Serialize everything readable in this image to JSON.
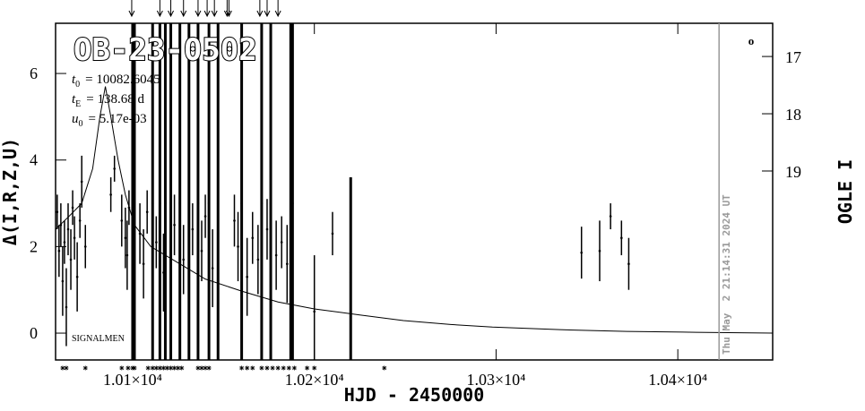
{
  "chart_data": {
    "type": "scatter",
    "title": "OB-23-0502",
    "x_label": "HJD - 2450000",
    "y_label": "Δ(I,R,Z,U)",
    "y2_label": "OGLE I",
    "credit": "SIGNALMEN",
    "corner_mark": "o",
    "timestamp": "Thu May  2 21:14:31 2024 UT",
    "now_x": 10422.7,
    "params": [
      {
        "symbol": "t",
        "sub": "0",
        "text": "= 10082.6045"
      },
      {
        "symbol": "t",
        "sub": "E",
        "text": "= 138.68 d"
      },
      {
        "symbol": "u",
        "sub": "0",
        "text": "= 5.17e-03"
      }
    ],
    "xlim": [
      10057.6,
      10452.2
    ],
    "ylim": [
      -0.62,
      7.16
    ],
    "y2lim": [
      16.42,
      22.3
    ],
    "xticks": [
      {
        "value": 10100,
        "label": "1.01×10⁴"
      },
      {
        "value": 10200,
        "label": "1.02×10⁴"
      },
      {
        "value": 10300,
        "label": "1.03×10⁴"
      },
      {
        "value": 10400,
        "label": "1.04×10⁴"
      }
    ],
    "yticks": [
      0,
      2,
      4,
      6
    ],
    "y2ticks": [
      17,
      18,
      19
    ],
    "color": "#000000",
    "x": [
      10058.5,
      10059.5,
      10060.5,
      10061.5,
      10062.5,
      10063.5,
      10064.5,
      10066,
      10067,
      10068,
      10069.5,
      10071,
      10072,
      10074,
      10088,
      10090,
      10094,
      10096,
      10097,
      10098,
      10100,
      10101,
      10104,
      10106,
      10108,
      10111,
      10113,
      10115,
      10117,
      10118,
      10121,
      10123,
      10126,
      10128,
      10131,
      10133,
      10136,
      10138,
      10140,
      10142,
      10144,
      10147,
      10156,
      10158,
      10160,
      10163,
      10166,
      10169,
      10171,
      10174,
      10176,
      10179,
      10182,
      10185,
      10187,
      10188,
      10200,
      10210,
      10220,
      10347,
      10357,
      10363,
      10369,
      10373
    ],
    "values": [
      2.8,
      1.9,
      2.5,
      1.2,
      2.1,
      0.6,
      2.4,
      1.7,
      2.9,
      2.2,
      1.3,
      2.6,
      3.5,
      2.0,
      3.2,
      3.8,
      2.6,
      2.2,
      1.8,
      2.9,
      3.0,
      3.0,
      2.3,
      1.6,
      2.8,
      3.0,
      2.1,
      3.0,
      1.4,
      3.0,
      3.0,
      2.5,
      3.0,
      1.7,
      3.0,
      2.4,
      3.0,
      1.9,
      2.7,
      3.0,
      1.5,
      3.0,
      2.6,
      2.0,
      3.0,
      1.3,
      2.2,
      1.7,
      3.0,
      2.4,
      3.0,
      1.8,
      2.1,
      1.6,
      3.0,
      3.0,
      0.5,
      2.3,
      1.4,
      1.86,
      1.9,
      2.7,
      2.2,
      1.6
    ],
    "errors": [
      0.4,
      0.6,
      0.5,
      0.8,
      0.5,
      0.9,
      0.6,
      0.7,
      0.4,
      0.5,
      0.8,
      0.4,
      0.6,
      0.5,
      0.4,
      0.3,
      0.6,
      0.7,
      0.8,
      0.4,
      5,
      5,
      0.7,
      0.8,
      0.5,
      5,
      0.6,
      5,
      0.9,
      5,
      5,
      0.7,
      5,
      0.8,
      5,
      0.6,
      5,
      0.7,
      0.5,
      5,
      0.9,
      5,
      0.6,
      0.8,
      5,
      0.9,
      0.6,
      0.8,
      5,
      0.7,
      5,
      0.8,
      0.6,
      0.9,
      5,
      5,
      1.3,
      0.5,
      2.2,
      0.6,
      0.7,
      0.3,
      0.4,
      0.6
    ],
    "model": {
      "x": [
        10057.6,
        10065,
        10072,
        10078,
        10082,
        10085,
        10088,
        10092,
        10096,
        10101,
        10110,
        10126,
        10140,
        10160,
        10180,
        10200,
        10225,
        10249,
        10275,
        10298,
        10335,
        10372,
        10410,
        10452.2
      ],
      "values": [
        2.4,
        2.7,
        3.0,
        3.8,
        5.0,
        5.7,
        5.0,
        4.0,
        3.2,
        2.5,
        2.0,
        1.6,
        1.25,
        0.97,
        0.72,
        0.56,
        0.42,
        0.29,
        0.2,
        0.14,
        0.08,
        0.04,
        0.02,
        0.0
      ]
    },
    "alerts_x": [
      10099.5,
      10115,
      10121,
      10128,
      10136,
      10141,
      10145,
      10152,
      10153,
      10170,
      10174,
      10180
    ],
    "obs_x": [
      10061.5,
      10063.5,
      10074,
      10094,
      10097.5,
      10100,
      10101,
      10108.5,
      10111,
      10113,
      10115,
      10117,
      10119,
      10121,
      10123,
      10125,
      10127,
      10136,
      10138,
      10140,
      10142,
      10160,
      10163,
      10166,
      10171,
      10174,
      10177,
      10180,
      10183,
      10186,
      10189,
      10196,
      10200,
      10238.5
    ]
  }
}
